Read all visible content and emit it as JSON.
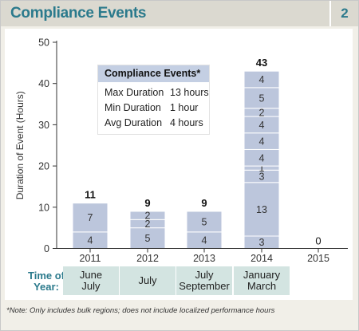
{
  "header": {
    "title": "Compliance Events",
    "page_number": "2"
  },
  "legend": {
    "title": "Compliance Events*",
    "rows": [
      {
        "label": "Max Duration",
        "value": "13 hours"
      },
      {
        "label": "Min Duration",
        "value": "1 hour"
      },
      {
        "label": "Avg Duration",
        "value": "4 hours"
      }
    ]
  },
  "time_of_year": {
    "label": "Time of Year:",
    "periods": [
      {
        "line1": "June",
        "line2": "July"
      },
      {
        "line1": "July",
        "line2": ""
      },
      {
        "line1": "July",
        "line2": "September"
      },
      {
        "line1": "January",
        "line2": "March"
      }
    ]
  },
  "note": "*Note: Only includes bulk regions; does not include localized performance hours",
  "colors": {
    "bar": "#bcc6dc",
    "accent": "#2b7a8c",
    "period_bg": "#d3e4e1"
  },
  "chart_data": {
    "type": "bar",
    "stacked": true,
    "categories": [
      "2011",
      "2012",
      "2013",
      "2014",
      "2015"
    ],
    "ylabel": "Duration of Event (Hours)",
    "xlabel": "",
    "ylim": [
      0,
      50
    ],
    "yticks": [
      0,
      10,
      20,
      30,
      40,
      50
    ],
    "grid": false,
    "segments": [
      [
        4,
        7
      ],
      [
        5,
        2,
        2
      ],
      [
        4,
        5
      ],
      [
        3,
        13,
        3,
        1,
        4,
        4,
        4,
        2,
        5,
        4
      ],
      []
    ],
    "totals": [
      11,
      9,
      9,
      43,
      0
    ]
  }
}
